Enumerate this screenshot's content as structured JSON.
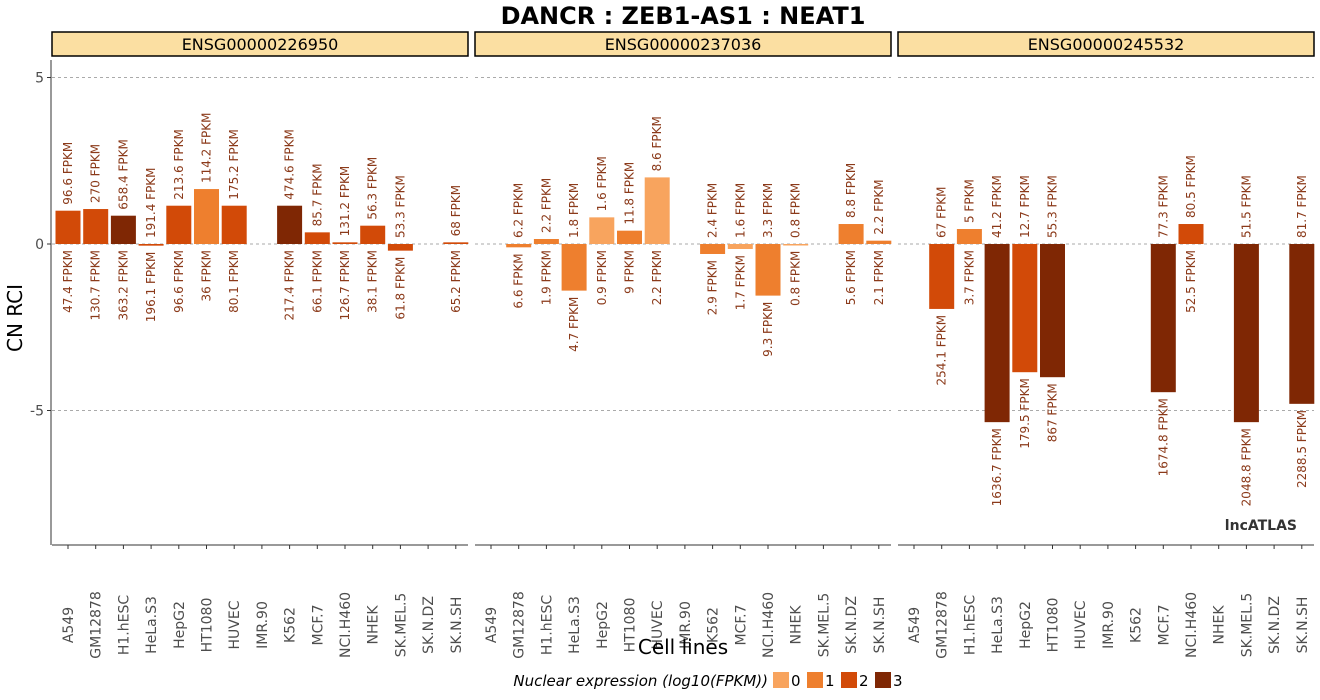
{
  "chart_data": {
    "type": "bar",
    "title": "DANCR : ZEB1-AS1 : NEAT1",
    "ylabel": "CN RCI",
    "xlabel": "Cell lines",
    "ylim": [
      -9,
      5.5
    ],
    "yticks": [
      5,
      0,
      -5
    ],
    "watermark": "lncATLAS",
    "legend": {
      "title": "Nuclear expression (log10(FPKM))",
      "items": [
        {
          "label": "0",
          "color": "#F8A45E"
        },
        {
          "label": "1",
          "color": "#EE7F2E"
        },
        {
          "label": "2",
          "color": "#D24A08"
        },
        {
          "label": "3",
          "color": "#7F2704"
        }
      ]
    },
    "categories": [
      "A549",
      "GM12878",
      "H1.hESC",
      "HeLa.S3",
      "HepG2",
      "HT1080",
      "HUVEC",
      "IMR.90",
      "K562",
      "MCF.7",
      "NCI.H460",
      "NHEK",
      "SK.MEL.5",
      "SK.N.DZ",
      "SK.N.SH"
    ],
    "panels": [
      {
        "name": "ENSG00000226950",
        "bars": [
          {
            "cell": "A549",
            "value": 1.0,
            "level": 2,
            "cyto": "96.6 FPKM",
            "nuc": "47.4 FPKM"
          },
          {
            "cell": "GM12878",
            "value": 1.05,
            "level": 2,
            "cyto": "270 FPKM",
            "nuc": "130.7 FPKM"
          },
          {
            "cell": "H1.hESC",
            "value": 0.85,
            "level": 3,
            "cyto": "658.4 FPKM",
            "nuc": "363.2 FPKM"
          },
          {
            "cell": "HeLa.S3",
            "value": -0.05,
            "level": 2,
            "cyto": "191.4 FPKM",
            "nuc": "196.1 FPKM"
          },
          {
            "cell": "HepG2",
            "value": 1.15,
            "level": 2,
            "cyto": "213.6 FPKM",
            "nuc": "96.6 FPKM"
          },
          {
            "cell": "HT1080",
            "value": 1.65,
            "level": 1,
            "cyto": "114.2 FPKM",
            "nuc": "36 FPKM"
          },
          {
            "cell": "HUVEC",
            "value": 1.15,
            "level": 2,
            "cyto": "175.2 FPKM",
            "nuc": "80.1 FPKM"
          },
          {
            "cell": "K562",
            "value": 1.15,
            "level": 3,
            "cyto": "474.6 FPKM",
            "nuc": "217.4 FPKM"
          },
          {
            "cell": "MCF.7",
            "value": 0.35,
            "level": 2,
            "cyto": "85.7 FPKM",
            "nuc": "66.1 FPKM"
          },
          {
            "cell": "NCI.H460",
            "value": 0.05,
            "level": 2,
            "cyto": "131.2 FPKM",
            "nuc": "126.7 FPKM"
          },
          {
            "cell": "NHEK",
            "value": 0.55,
            "level": 2,
            "cyto": "56.3 FPKM",
            "nuc": "38.1 FPKM"
          },
          {
            "cell": "SK.MEL.5",
            "value": -0.2,
            "level": 2,
            "cyto": "53.3 FPKM",
            "nuc": "61.8 FPKM"
          },
          {
            "cell": "SK.N.SH",
            "value": 0.05,
            "level": 2,
            "cyto": "68 FPKM",
            "nuc": "65.2 FPKM"
          }
        ]
      },
      {
        "name": "ENSG00000237036",
        "bars": [
          {
            "cell": "GM12878",
            "value": -0.1,
            "level": 1,
            "cyto": "6.2 FPKM",
            "nuc": "6.6 FPKM"
          },
          {
            "cell": "H1.hESC",
            "value": 0.15,
            "level": 1,
            "cyto": "2.2 FPKM",
            "nuc": "1.9 FPKM"
          },
          {
            "cell": "HeLa.S3",
            "value": -1.4,
            "level": 1,
            "cyto": "1.8 FPKM",
            "nuc": "4.7 FPKM"
          },
          {
            "cell": "HepG2",
            "value": 0.8,
            "level": 0,
            "cyto": "1.6 FPKM",
            "nuc": "0.9 FPKM"
          },
          {
            "cell": "HT1080",
            "value": 0.4,
            "level": 1,
            "cyto": "11.8 FPKM",
            "nuc": "9 FPKM"
          },
          {
            "cell": "HUVEC",
            "value": 2.0,
            "level": 0,
            "cyto": "8.6 FPKM",
            "nuc": "2.2 FPKM"
          },
          {
            "cell": "K562",
            "value": -0.3,
            "level": 1,
            "cyto": "2.4 FPKM",
            "nuc": "2.9 FPKM"
          },
          {
            "cell": "MCF.7",
            "value": -0.15,
            "level": 0,
            "cyto": "1.6 FPKM",
            "nuc": "1.7 FPKM"
          },
          {
            "cell": "NCI.H460",
            "value": -1.55,
            "level": 1,
            "cyto": "3.3 FPKM",
            "nuc": "9.3 FPKM"
          },
          {
            "cell": "NHEK",
            "value": -0.02,
            "level": 0,
            "cyto": "0.8 FPKM",
            "nuc": "0.8 FPKM"
          },
          {
            "cell": "SK.N.DZ",
            "value": 0.6,
            "level": 1,
            "cyto": "8.8 FPKM",
            "nuc": "5.6 FPKM"
          },
          {
            "cell": "SK.N.SH",
            "value": 0.1,
            "level": 1,
            "cyto": "2.2 FPKM",
            "nuc": "2.1 FPKM"
          }
        ]
      },
      {
        "name": "ENSG00000245532",
        "bars": [
          {
            "cell": "GM12878",
            "value": -1.95,
            "level": 2,
            "cyto": "67 FPKM",
            "nuc": "254.1 FPKM"
          },
          {
            "cell": "H1.hESC",
            "value": 0.45,
            "level": 1,
            "cyto": "5 FPKM",
            "nuc": "3.7 FPKM"
          },
          {
            "cell": "HeLa.S3",
            "value": -5.35,
            "level": 3,
            "cyto": "41.2 FPKM",
            "nuc": "1636.7 FPKM"
          },
          {
            "cell": "HepG2",
            "value": -3.85,
            "level": 2,
            "cyto": "12.7 FPKM",
            "nuc": "179.5 FPKM"
          },
          {
            "cell": "HT1080",
            "value": -4.0,
            "level": 3,
            "cyto": "55.3 FPKM",
            "nuc": "867 FPKM"
          },
          {
            "cell": "MCF.7",
            "value": -4.45,
            "level": 3,
            "cyto": "77.3 FPKM",
            "nuc": "1674.8 FPKM"
          },
          {
            "cell": "NCI.H460",
            "value": 0.6,
            "level": 2,
            "cyto": "80.5 FPKM",
            "nuc": "52.5 FPKM"
          },
          {
            "cell": "SK.MEL.5",
            "value": -5.35,
            "level": 3,
            "cyto": "51.5 FPKM",
            "nuc": "2048.8 FPKM"
          },
          {
            "cell": "SK.N.SH",
            "value": -4.8,
            "level": 3,
            "cyto": "81.7 FPKM",
            "nuc": "2288.5 FPKM"
          }
        ]
      }
    ]
  }
}
